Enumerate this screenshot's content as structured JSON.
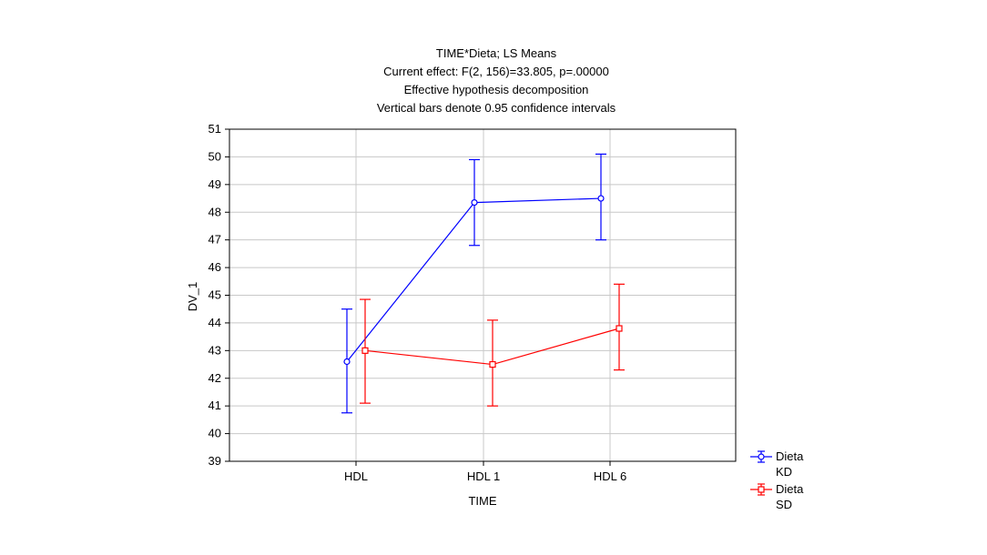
{
  "chart_data": {
    "type": "line",
    "title": [
      "TIME*Dieta; LS Means",
      "Current effect: F(2, 156)=33.805, p=.00000",
      "Effective hypothesis decomposition",
      "Vertical bars denote 0.95 confidence intervals"
    ],
    "xlabel": "TIME",
    "ylabel": "DV_1",
    "categories": [
      "HDL",
      "HDL 1",
      "HDL 6"
    ],
    "ylim": [
      39,
      51
    ],
    "yticks": [
      39,
      40,
      41,
      42,
      43,
      44,
      45,
      46,
      47,
      48,
      49,
      50,
      51
    ],
    "grid": true,
    "legend_position": "bottom-right",
    "series": [
      {
        "name_line1": "Dieta",
        "name_line2": "KD",
        "color": "#0000ff",
        "marker": "circle",
        "values": [
          42.6,
          48.35,
          48.5
        ],
        "ci_low": [
          40.75,
          46.8,
          47.0
        ],
        "ci_high": [
          44.5,
          49.9,
          50.1
        ]
      },
      {
        "name_line1": "Dieta",
        "name_line2": "SD",
        "color": "#ff0000",
        "marker": "square",
        "values": [
          43.0,
          42.5,
          43.8
        ],
        "ci_low": [
          41.1,
          41.0,
          42.3
        ],
        "ci_high": [
          44.85,
          44.1,
          45.4
        ]
      }
    ]
  }
}
